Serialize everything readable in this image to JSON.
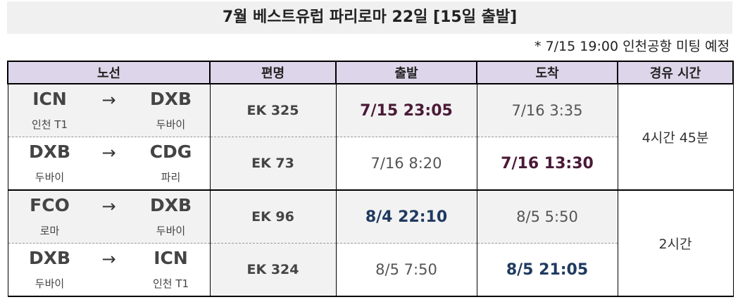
{
  "header": {
    "title": "7월 베스트유럽 파리로마 22일 [15일 출발]",
    "note": "* 7/15 19:00 인천공항 미팅 예정"
  },
  "table": {
    "columns": [
      "노선",
      "편명",
      "출발",
      "도착",
      "경유 시간"
    ],
    "groups": [
      {
        "layover": "4시간 45분",
        "highlight_color": "#4a1a36",
        "legs": [
          {
            "from_code": "ICN",
            "from_name": "인천 T1",
            "arrow": "→",
            "to_code": "DXB",
            "to_name": "두바이",
            "flight": "EK 325",
            "departure": "7/15 23:05",
            "arrival": "7/16 3:35",
            "bold": "departure"
          },
          {
            "from_code": "DXB",
            "from_name": "두바이",
            "arrow": "→",
            "to_code": "CDG",
            "to_name": "파리",
            "flight": "EK 73",
            "departure": "7/16 8:20",
            "arrival": "7/16 13:30",
            "bold": "arrival"
          }
        ]
      },
      {
        "layover": "2시간",
        "highlight_color": "#1f3a60",
        "legs": [
          {
            "from_code": "FCO",
            "from_name": "로마",
            "arrow": "→",
            "to_code": "DXB",
            "to_name": "두바이",
            "flight": "EK 96",
            "departure": "8/4 22:10",
            "arrival": "8/5 5:50",
            "bold": "departure"
          },
          {
            "from_code": "DXB",
            "from_name": "두바이",
            "arrow": "→",
            "to_code": "ICN",
            "to_name": "인천 T1",
            "flight": "EK 324",
            "departure": "8/5 7:50",
            "arrival": "8/5 21:05",
            "bold": "arrival"
          }
        ]
      }
    ]
  }
}
